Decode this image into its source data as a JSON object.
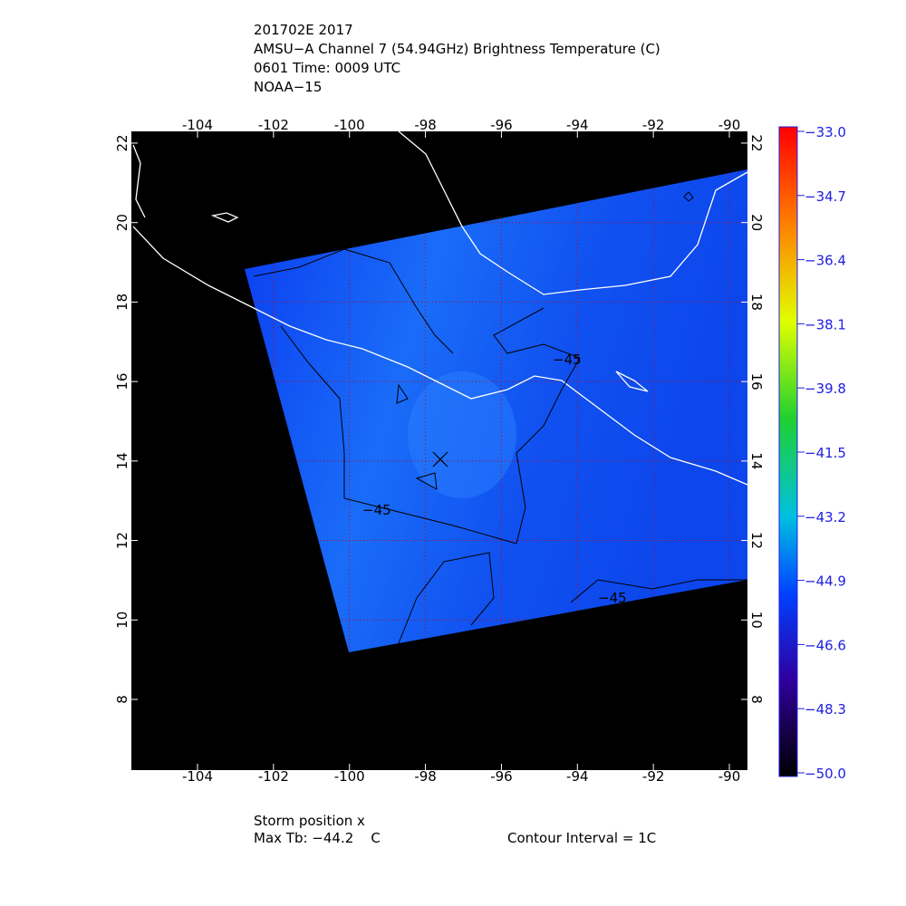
{
  "header": {
    "lines": [
      "201702E 2017",
      "AMSU−A Channel 7 (54.94GHz) Brightness Temperature (C)",
      "0601 Time: 0009 UTC",
      "NOAA−15"
    ]
  },
  "map": {
    "lon_ticks": [
      -104,
      -102,
      -100,
      -98,
      -96,
      -94,
      -92,
      -90
    ],
    "lat_ticks": [
      8,
      10,
      12,
      14,
      16,
      18,
      20,
      22
    ],
    "contour_labels": [
      "−45",
      "−45",
      "−45"
    ]
  },
  "colorbar": {
    "ticks": [
      {
        "value": -33.0,
        "label": "−33.0"
      },
      {
        "value": -34.7,
        "label": "−34.7"
      },
      {
        "value": -36.4,
        "label": "−36.4"
      },
      {
        "value": -38.1,
        "label": "−38.1"
      },
      {
        "value": -39.8,
        "label": "−39.8"
      },
      {
        "value": -41.5,
        "label": "−41.5"
      },
      {
        "value": -43.2,
        "label": "−43.2"
      },
      {
        "value": -44.9,
        "label": "−44.9"
      },
      {
        "value": -46.6,
        "label": "−46.6"
      },
      {
        "value": -48.3,
        "label": "−48.3"
      },
      {
        "value": -50.0,
        "label": "−50.0"
      }
    ]
  },
  "footer": {
    "storm": "Storm position x",
    "max_tb": "Max Tb: −44.2    C",
    "contour_interval": "Contour Interval = 1C"
  }
}
